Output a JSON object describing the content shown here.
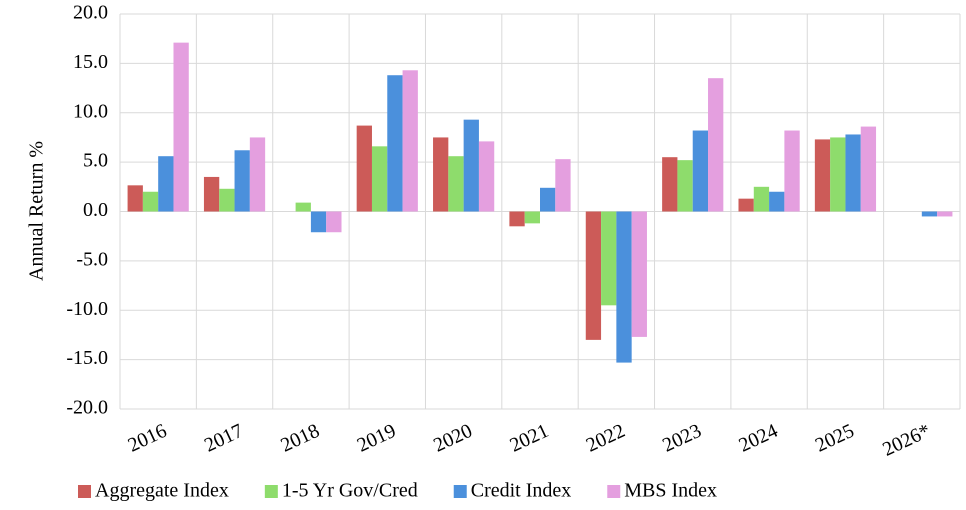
{
  "chart_data": {
    "type": "bar",
    "ylabel": "Annual Return %",
    "categories": [
      "2016",
      "2017",
      "2018",
      "2019",
      "2020",
      "2021",
      "2022",
      "2023",
      "2024",
      "2025",
      "2026*"
    ],
    "series": [
      {
        "name": "Aggregate Index",
        "color": "#cc5b58",
        "values": [
          2.65,
          3.5,
          0.0,
          8.7,
          7.5,
          -1.5,
          -13.0,
          5.5,
          1.3,
          7.3,
          0.0
        ]
      },
      {
        "name": "1-5 Yr Gov/Cred",
        "color": "#8edc6c",
        "values": [
          2.0,
          2.3,
          0.9,
          6.6,
          5.6,
          -1.2,
          -9.5,
          5.2,
          2.5,
          7.5,
          0.0
        ]
      },
      {
        "name": "Credit Index",
        "color": "#4b90dc",
        "values": [
          5.6,
          6.2,
          -2.1,
          13.8,
          9.3,
          2.4,
          -15.3,
          8.2,
          2.0,
          7.8,
          -0.5
        ]
      },
      {
        "name": "MBS Index",
        "color": "#e49fdf",
        "values": [
          17.1,
          7.5,
          -2.1,
          14.3,
          7.1,
          5.3,
          -12.7,
          13.5,
          8.2,
          8.6,
          -0.5
        ]
      }
    ],
    "ylim": [
      -20,
      20
    ],
    "yticks": [
      {
        "value": -20,
        "label": "-20.0"
      },
      {
        "value": -15,
        "label": "-15.0"
      },
      {
        "value": -10,
        "label": "-10.0"
      },
      {
        "value": -5,
        "label": "-5.0"
      },
      {
        "value": 0,
        "label": "0.0"
      },
      {
        "value": 5,
        "label": "5.0"
      },
      {
        "value": 10,
        "label": "10.0"
      },
      {
        "value": 15,
        "label": "15.0"
      },
      {
        "value": 20,
        "label": "20.0"
      }
    ],
    "grid": true,
    "legend": "bottom"
  }
}
